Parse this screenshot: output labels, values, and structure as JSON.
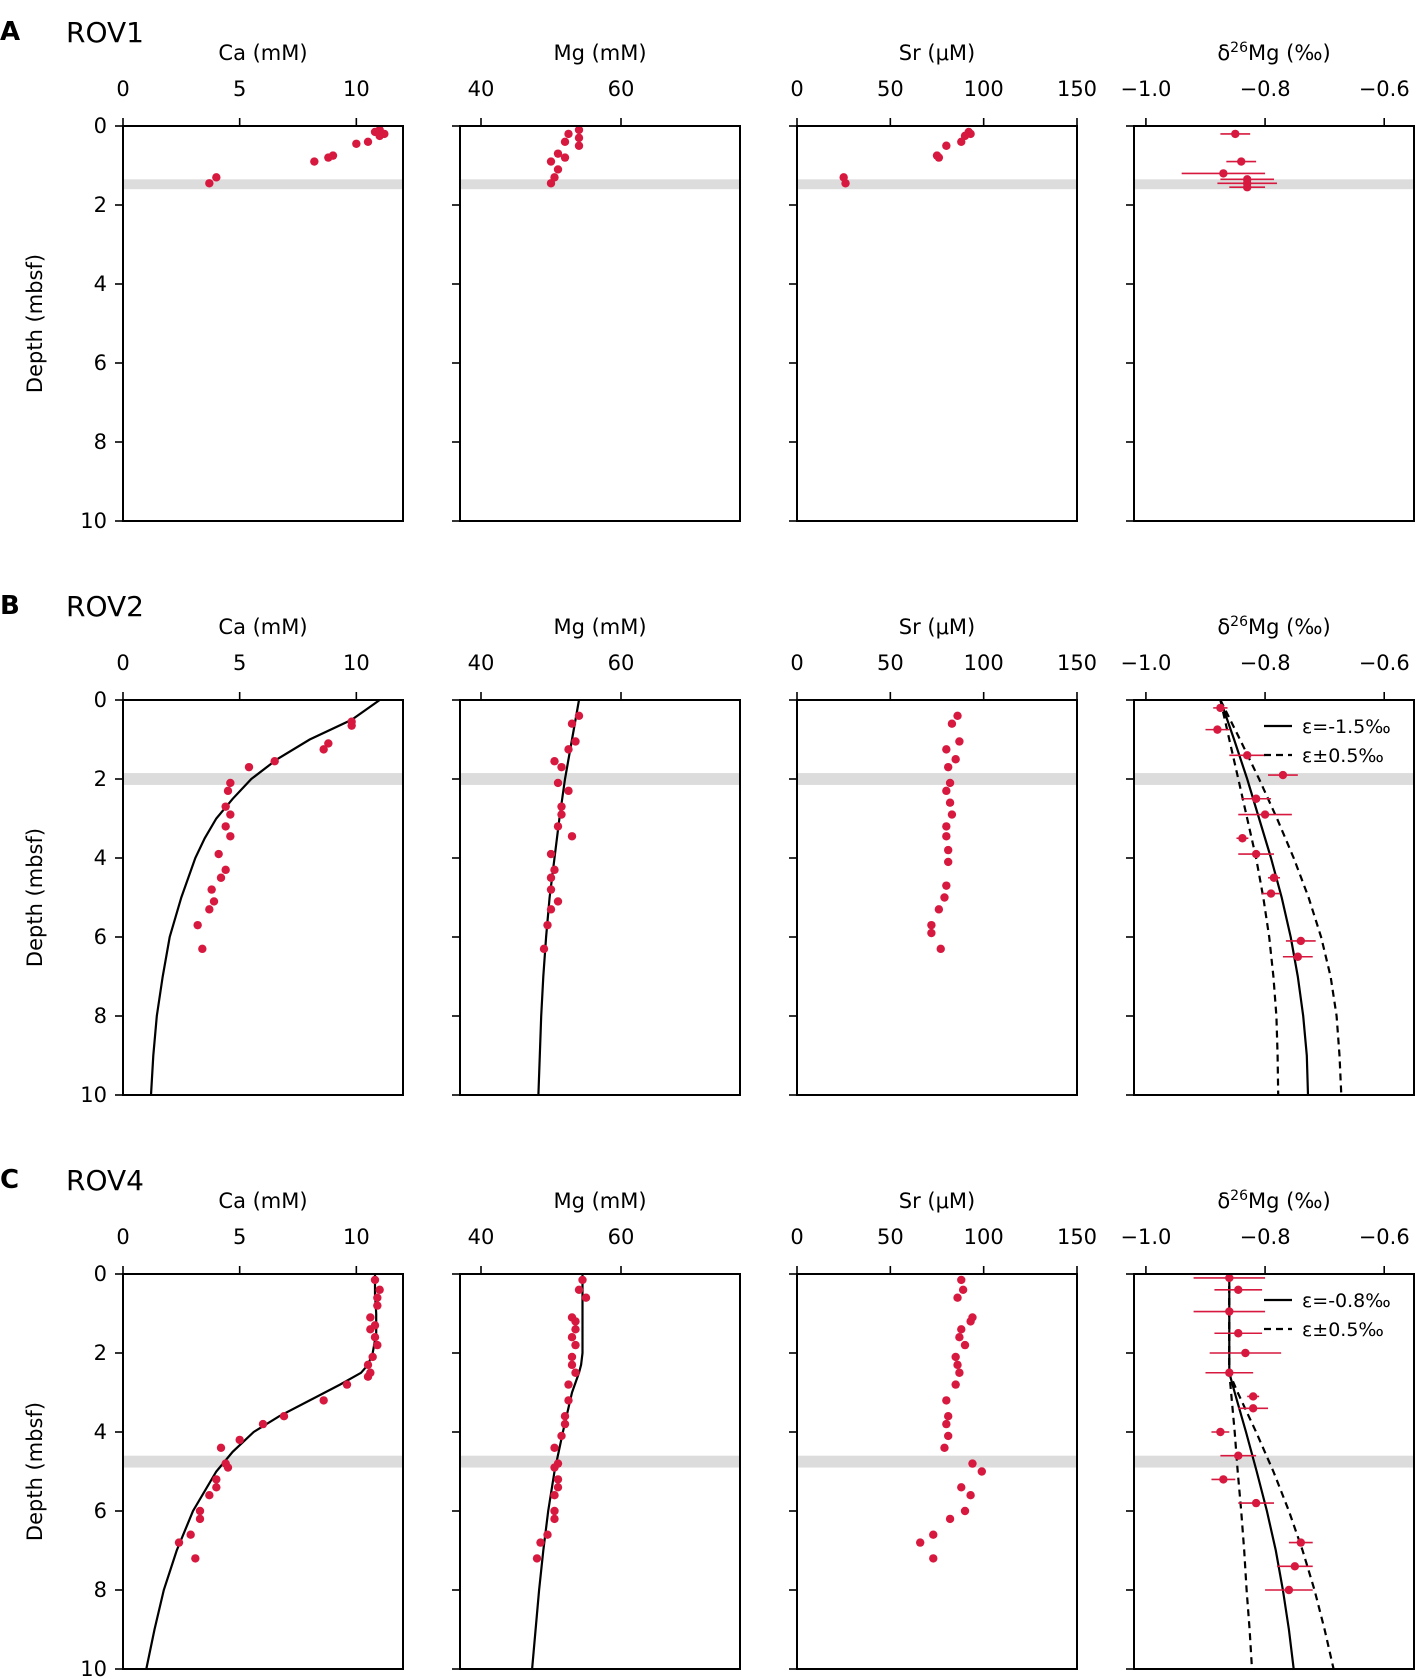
{
  "figure": {
    "colors": {
      "data": "#d7193f",
      "band": "#dcdcdc",
      "axis": "#000000",
      "model": "#000000"
    },
    "ylabel": "Depth (mbsf)",
    "yticks": [
      "0",
      "2",
      "4",
      "6",
      "8",
      "10"
    ],
    "xlabels": [
      "Ca (mM)",
      "Mg (mM)",
      "Sr (μM)",
      "δ26Mg (‰)"
    ],
    "xticks": [
      [
        "0",
        "5",
        "10"
      ],
      [
        "40",
        "60"
      ],
      [
        "0",
        "50",
        "100",
        "150"
      ],
      [
        "−1.0",
        "−0.8",
        "−0.6"
      ]
    ],
    "d26_base": "δ",
    "d26_sup": "26",
    "d26_rest": "Mg (‰)"
  },
  "chart_data": [
    {
      "type": "scatter",
      "panel": "A",
      "title": "ROV1",
      "ylim": [
        10,
        0
      ],
      "xlims": [
        [
          0,
          12
        ],
        [
          37,
          77
        ],
        [
          0,
          150
        ],
        [
          -1.02,
          -0.55
        ]
      ],
      "sms_depth": [
        1.35,
        1.6
      ],
      "ca": {
        "depth": [
          0.1,
          0.15,
          0.2,
          0.25,
          0.4,
          0.45,
          0.75,
          0.8,
          0.9,
          1.3,
          1.45
        ],
        "values": [
          11.0,
          10.8,
          11.2,
          11.0,
          10.5,
          10.0,
          9.0,
          8.8,
          8.2,
          4.0,
          3.7
        ]
      },
      "mg": {
        "depth": [
          0.1,
          0.2,
          0.3,
          0.4,
          0.5,
          0.7,
          0.8,
          0.9,
          1.1,
          1.3,
          1.45
        ],
        "values": [
          54.0,
          52.5,
          54.0,
          52.0,
          54.0,
          51.0,
          52.0,
          50.0,
          51.0,
          50.5,
          50.0
        ]
      },
      "sr": {
        "depth": [
          0.15,
          0.2,
          0.25,
          0.4,
          0.5,
          0.75,
          0.8,
          1.3,
          1.45
        ],
        "values": [
          92,
          93,
          90,
          88,
          80,
          75,
          76,
          25,
          26
        ]
      },
      "d26": {
        "depth": [
          0.2,
          0.9,
          1.2,
          1.35,
          1.45,
          1.55
        ],
        "values": [
          -0.85,
          -0.84,
          -0.87,
          -0.83,
          -0.83,
          -0.83
        ],
        "err": [
          0.025,
          0.025,
          0.07,
          0.045,
          0.05,
          0.03
        ]
      },
      "model": null
    },
    {
      "type": "scatter",
      "panel": "B",
      "title": "ROV2",
      "ylim": [
        10,
        0
      ],
      "xlims": [
        [
          0,
          12
        ],
        [
          37,
          77
        ],
        [
          0,
          150
        ],
        [
          -1.02,
          -0.55
        ]
      ],
      "sms_depth": [
        1.85,
        2.15
      ],
      "ca": {
        "depth": [
          0.55,
          0.65,
          1.1,
          1.25,
          1.55,
          1.7,
          2.1,
          2.3,
          2.7,
          2.9,
          3.2,
          3.45,
          3.9,
          4.3,
          4.5,
          4.8,
          5.1,
          5.3,
          5.7,
          6.3
        ],
        "values": [
          9.8,
          9.8,
          8.8,
          8.6,
          6.5,
          5.4,
          4.6,
          4.5,
          4.4,
          4.6,
          4.4,
          4.6,
          4.1,
          4.4,
          4.2,
          3.8,
          3.9,
          3.7,
          3.2,
          3.4
        ]
      },
      "mg": {
        "depth": [
          0.4,
          0.6,
          1.05,
          1.25,
          1.55,
          1.7,
          2.1,
          2.3,
          2.7,
          2.9,
          3.2,
          3.45,
          3.9,
          4.3,
          4.5,
          4.8,
          5.1,
          5.3,
          5.7,
          6.3
        ],
        "values": [
          54.0,
          53.0,
          53.5,
          52.5,
          50.5,
          51.5,
          51.0,
          52.5,
          51.5,
          51.5,
          51.0,
          53.0,
          50.0,
          50.5,
          50.0,
          50.0,
          51.0,
          50.0,
          49.5,
          49.0
        ]
      },
      "sr": {
        "depth": [
          0.4,
          0.6,
          1.05,
          1.25,
          1.5,
          1.7,
          2.1,
          2.3,
          2.6,
          2.9,
          3.2,
          3.45,
          3.8,
          4.1,
          4.7,
          5.0,
          5.3,
          5.7,
          5.9,
          6.3
        ],
        "values": [
          86,
          83,
          87,
          80,
          85,
          81,
          82,
          80,
          82,
          83,
          80,
          80,
          81,
          81,
          80,
          79,
          76,
          72,
          72,
          77
        ]
      },
      "d26": {
        "depth": [
          0.2,
          0.75,
          1.4,
          1.9,
          2.5,
          2.9,
          3.5,
          3.9,
          4.5,
          4.9,
          6.1,
          6.5
        ],
        "values": [
          -0.875,
          -0.88,
          -0.83,
          -0.77,
          -0.815,
          -0.8,
          -0.838,
          -0.815,
          -0.785,
          -0.79,
          -0.74,
          -0.745
        ],
        "err": [
          0.012,
          0.02,
          0.03,
          0.025,
          0.025,
          0.045,
          0.01,
          0.03,
          0.01,
          0.015,
          0.025,
          0.025
        ]
      },
      "model": {
        "ca": {
          "depth": [
            0,
            0.5,
            1,
            1.5,
            2,
            2.5,
            3,
            3.5,
            4,
            5,
            6,
            7,
            8,
            9,
            10
          ],
          "values": [
            11.0,
            9.8,
            8.0,
            6.6,
            5.5,
            4.7,
            4.0,
            3.5,
            3.1,
            2.5,
            2.0,
            1.7,
            1.45,
            1.3,
            1.2
          ]
        },
        "mg": {
          "depth": [
            0,
            1,
            2,
            3,
            4,
            5,
            6,
            7,
            8,
            9,
            10
          ],
          "values": [
            54.0,
            53.0,
            52.0,
            51.2,
            50.5,
            49.8,
            49.3,
            48.9,
            48.6,
            48.4,
            48.2
          ]
        },
        "d26_mid": {
          "depth": [
            0,
            1,
            2,
            3,
            4,
            5,
            6,
            7,
            8,
            9,
            10
          ],
          "values": [
            -0.875,
            -0.852,
            -0.83,
            -0.81,
            -0.79,
            -0.772,
            -0.757,
            -0.745,
            -0.736,
            -0.73,
            -0.728
          ]
        },
        "d26_lo": {
          "depth": [
            0,
            1,
            2,
            3,
            4,
            5,
            6,
            7,
            8,
            9,
            10
          ],
          "values": [
            -0.875,
            -0.86,
            -0.845,
            -0.83,
            -0.815,
            -0.803,
            -0.793,
            -0.786,
            -0.781,
            -0.779,
            -0.778
          ]
        },
        "d26_hi": {
          "depth": [
            0,
            1,
            2,
            3,
            4,
            5,
            6,
            7,
            8,
            9,
            10
          ],
          "values": [
            -0.875,
            -0.842,
            -0.81,
            -0.78,
            -0.752,
            -0.727,
            -0.706,
            -0.69,
            -0.68,
            -0.675,
            -0.672
          ]
        }
      },
      "legend": {
        "solid": "ε=-1.5‰",
        "dashed": "ε±0.5‰"
      }
    },
    {
      "type": "scatter",
      "panel": "C",
      "title": "ROV4",
      "ylim": [
        10,
        0
      ],
      "xlims": [
        [
          0,
          12
        ],
        [
          37,
          77
        ],
        [
          0,
          150
        ],
        [
          -1.02,
          -0.55
        ]
      ],
      "sms_depth": [
        4.6,
        4.9
      ],
      "ca": {
        "depth": [
          0.15,
          0.4,
          0.6,
          0.8,
          1.1,
          1.3,
          1.4,
          1.6,
          1.8,
          2.1,
          2.3,
          2.5,
          2.6,
          2.8,
          3.2,
          3.6,
          3.8,
          4.2,
          4.4,
          4.8,
          4.9,
          5.2,
          5.4,
          5.6,
          6.0,
          6.2,
          6.6,
          6.8,
          7.2
        ],
        "values": [
          10.8,
          11.0,
          10.9,
          10.9,
          10.6,
          10.8,
          10.6,
          10.8,
          10.9,
          10.7,
          10.5,
          10.6,
          10.5,
          9.6,
          8.6,
          6.9,
          6.0,
          5.0,
          4.2,
          4.4,
          4.5,
          4.0,
          4.0,
          3.7,
          3.3,
          3.3,
          2.9,
          2.4,
          3.1
        ]
      },
      "mg": {
        "depth": [
          0.15,
          0.4,
          0.6,
          1.1,
          1.2,
          1.4,
          1.6,
          1.8,
          2.1,
          2.3,
          2.5,
          2.8,
          3.2,
          3.6,
          3.8,
          4.1,
          4.4,
          4.8,
          4.9,
          5.2,
          5.4,
          5.6,
          6.0,
          6.2,
          6.6,
          6.8,
          7.2
        ],
        "values": [
          54.5,
          54.0,
          55.0,
          53.0,
          53.5,
          53.5,
          53.0,
          53.5,
          53.0,
          53.0,
          53.5,
          52.5,
          52.5,
          52.0,
          52.0,
          51.5,
          50.5,
          51.0,
          50.5,
          51.0,
          51.0,
          50.5,
          50.5,
          50.5,
          49.5,
          48.5,
          48.0
        ]
      },
      "sr": {
        "depth": [
          0.15,
          0.4,
          0.6,
          1.1,
          1.2,
          1.4,
          1.6,
          1.8,
          2.1,
          2.3,
          2.5,
          2.8,
          3.2,
          3.6,
          3.8,
          4.1,
          4.4,
          4.8,
          5.0,
          5.4,
          5.6,
          6.0,
          6.2,
          6.6,
          6.8,
          7.2
        ],
        "values": [
          88,
          89,
          86,
          94,
          93,
          88,
          87,
          90,
          85,
          86,
          87,
          85,
          80,
          81,
          80,
          81,
          79,
          94,
          99,
          88,
          93,
          90,
          82,
          73,
          66,
          73
        ]
      },
      "d26": {
        "depth": [
          0.1,
          0.4,
          0.95,
          1.5,
          2.0,
          2.5,
          3.1,
          3.4,
          4.0,
          4.6,
          5.2,
          5.8,
          6.8,
          7.4,
          8.0
        ],
        "values": [
          -0.86,
          -0.845,
          -0.86,
          -0.845,
          -0.833,
          -0.86,
          -0.82,
          -0.82,
          -0.875,
          -0.845,
          -0.87,
          -0.815,
          -0.74,
          -0.75,
          -0.76
        ],
        "err": [
          0.06,
          0.04,
          0.06,
          0.04,
          0.06,
          0.04,
          0.01,
          0.025,
          0.015,
          0.03,
          0.02,
          0.03,
          0.02,
          0.03,
          0.04
        ]
      },
      "model": {
        "ca": {
          "depth": [
            0,
            0.5,
            1,
            1.5,
            2,
            2.3,
            2.5,
            2.8,
            3.2,
            3.6,
            4.0,
            4.5,
            5.0,
            6.0,
            7.0,
            8.0,
            9.0,
            10.0
          ],
          "values": [
            10.8,
            10.8,
            10.85,
            10.85,
            10.7,
            10.5,
            10.2,
            9.3,
            8.0,
            6.7,
            5.6,
            4.7,
            4.0,
            3.0,
            2.3,
            1.75,
            1.35,
            1.0
          ]
        },
        "mg": {
          "depth": [
            0,
            1,
            2,
            2.3,
            2.5,
            3,
            4,
            5,
            6,
            7,
            8,
            9,
            10
          ],
          "values": [
            54.5,
            54.5,
            54.5,
            54.3,
            54.0,
            53.0,
            51.7,
            50.5,
            49.6,
            48.9,
            48.3,
            47.8,
            47.3
          ]
        },
        "d26_mid": {
          "depth": [
            0,
            2.5,
            3,
            4,
            5,
            6,
            7,
            8,
            9,
            10
          ],
          "values": [
            -0.86,
            -0.86,
            -0.851,
            -0.832,
            -0.814,
            -0.797,
            -0.782,
            -0.77,
            -0.76,
            -0.752
          ]
        },
        "d26_lo": {
          "depth": [
            0,
            2.5,
            3,
            4,
            5,
            6,
            7,
            8,
            9,
            10
          ],
          "values": [
            -0.86,
            -0.86,
            -0.857,
            -0.851,
            -0.846,
            -0.84,
            -0.835,
            -0.831,
            -0.826,
            -0.822
          ]
        },
        "d26_hi": {
          "depth": [
            0,
            2.5,
            3,
            4,
            5,
            6,
            7,
            8,
            9,
            10
          ],
          "values": [
            -0.86,
            -0.86,
            -0.846,
            -0.815,
            -0.786,
            -0.76,
            -0.737,
            -0.717,
            -0.7,
            -0.685
          ]
        }
      },
      "legend": {
        "solid": "ε=-0.8‰",
        "dashed": "ε±0.5‰"
      }
    }
  ]
}
